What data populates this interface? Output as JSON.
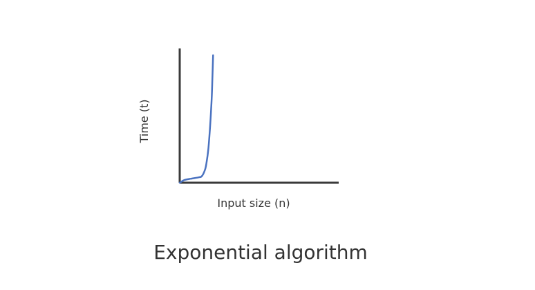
{
  "caption": "Exponential algorithm",
  "colors": {
    "axis": "#3a3a3a",
    "curve": "#4a72c0",
    "text": "#333333"
  },
  "chart_data": {
    "type": "line",
    "title": "",
    "xlabel": "Input size (n)",
    "ylabel": "Time (t)",
    "x_ticks": false,
    "y_ticks": false,
    "grid": false,
    "xlim": [
      0,
      10
    ],
    "ylim": [
      0,
      100
    ],
    "series": [
      {
        "values_x": [
          0,
          0.3,
          0.7,
          1.2,
          1.4,
          1.6,
          1.7,
          1.8,
          1.9,
          2.0,
          2.05,
          2.1
        ],
        "values_y": [
          0,
          2,
          3,
          4,
          5,
          10,
          16,
          25,
          40,
          60,
          75,
          95
        ]
      }
    ]
  }
}
